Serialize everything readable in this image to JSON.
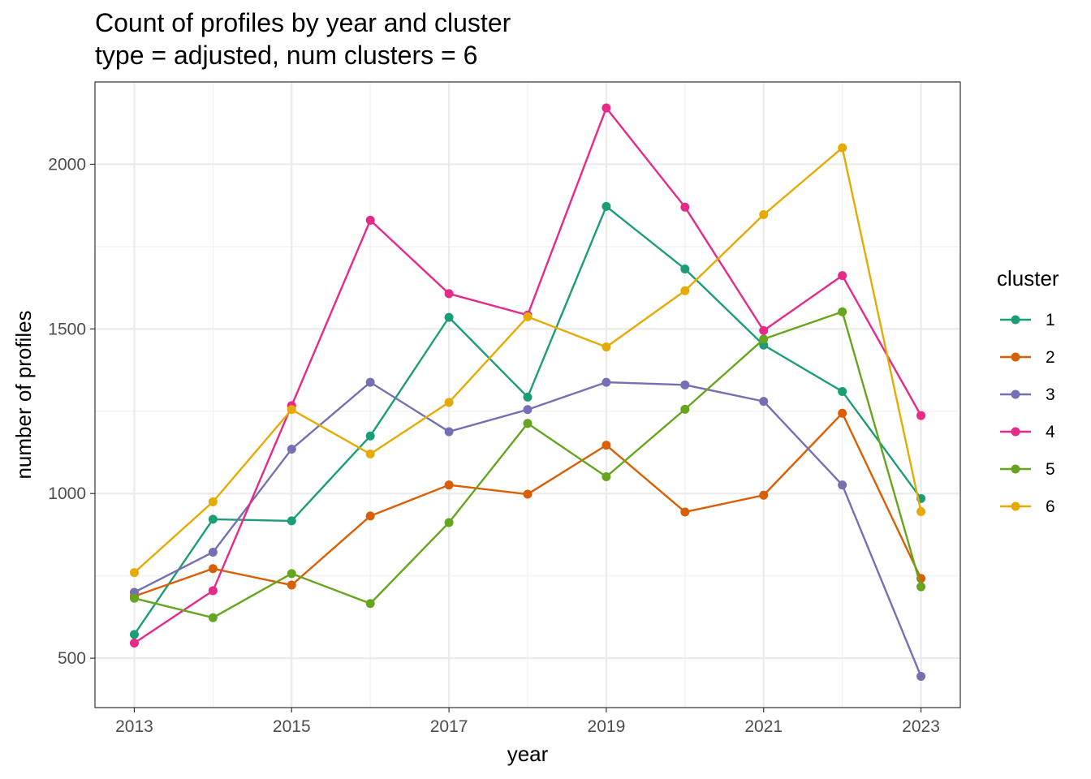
{
  "chart_data": {
    "type": "line",
    "title": "Count of profiles by year and cluster",
    "subtitle": "type = adjusted, num clusters = 6",
    "xlabel": "year",
    "ylabel": "number of profiles",
    "x": [
      2013,
      2014,
      2015,
      2016,
      2017,
      2018,
      2019,
      2020,
      2021,
      2022,
      2023
    ],
    "xlim": [
      2012.5,
      2023.5
    ],
    "ylim": [
      350,
      2250
    ],
    "x_ticks": [
      "2013",
      "2015",
      "2017",
      "2019",
      "2021",
      "2023"
    ],
    "y_ticks": [
      "500",
      "1000",
      "1500",
      "2000"
    ],
    "legend_title": "cluster",
    "legend_position": "right",
    "grid": true,
    "series": [
      {
        "name": "1",
        "color": "#1b9e77",
        "values": [
          572,
          922,
          917,
          1175,
          1535,
          1293,
          1872,
          1682,
          1451,
          1310,
          985
        ]
      },
      {
        "name": "2",
        "color": "#d95f02",
        "values": [
          688,
          772,
          722,
          932,
          1026,
          998,
          1147,
          944,
          995,
          1244,
          742
        ]
      },
      {
        "name": "3",
        "color": "#7570b3",
        "values": [
          700,
          822,
          1135,
          1338,
          1188,
          1255,
          1338,
          1330,
          1280,
          1026,
          445
        ]
      },
      {
        "name": "4",
        "color": "#e7298a",
        "values": [
          546,
          705,
          1267,
          1830,
          1607,
          1542,
          2171,
          1870,
          1495,
          1662,
          1237
        ]
      },
      {
        "name": "5",
        "color": "#66a61e",
        "values": [
          682,
          623,
          757,
          666,
          912,
          1213,
          1051,
          1256,
          1469,
          1552,
          717
        ]
      },
      {
        "name": "6",
        "color": "#e6ab02",
        "values": [
          760,
          975,
          1255,
          1120,
          1277,
          1537,
          1445,
          1616,
          1847,
          2050,
          945
        ]
      }
    ]
  }
}
